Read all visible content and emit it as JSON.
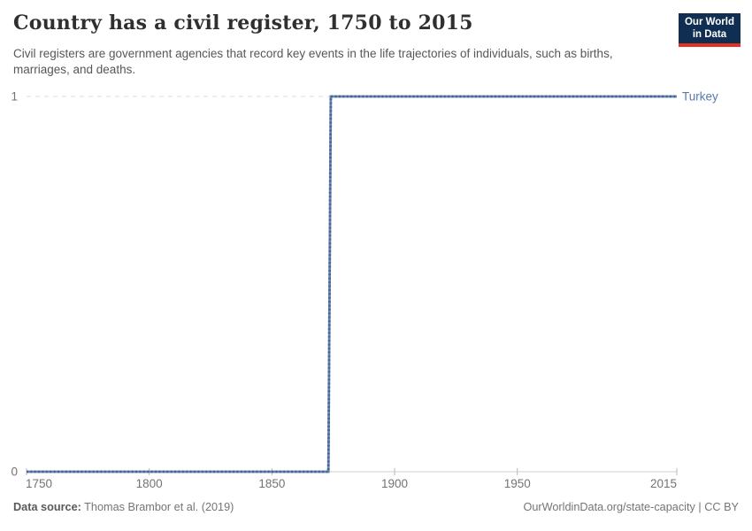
{
  "header": {
    "title": "Country has a civil register, 1750 to 2015",
    "subtitle": "Civil registers are government agencies that record key events in the life trajectories of individuals, such as births, marriages, and deaths."
  },
  "logo": {
    "line1": "Our World",
    "line2": "in Data",
    "bg_color": "#0f2e51",
    "accent_color": "#e13223"
  },
  "chart_data": {
    "type": "line",
    "step": true,
    "title": "Country has a civil register, 1750 to 2015",
    "xlabel": "",
    "ylabel": "",
    "xlim": [
      1750,
      2015
    ],
    "ylim": [
      0,
      1
    ],
    "x_ticks": [
      1750,
      1800,
      1850,
      1900,
      1950,
      2015
    ],
    "y_ticks": [
      0,
      1
    ],
    "grid": "horizontal-dashed-at-1",
    "legend_position": "end-of-line",
    "series": [
      {
        "name": "Turkey",
        "color": "#5779ab",
        "line_color": "#6584af",
        "marker_color": "#44618e",
        "points": [
          {
            "x": 1750,
            "y": 0
          },
          {
            "x": 1873,
            "y": 0
          },
          {
            "x": 1874,
            "y": 1
          },
          {
            "x": 2015,
            "y": 1
          }
        ]
      }
    ]
  },
  "footer": {
    "source_label": "Data source:",
    "source_value": "Thomas Brambor et al. (2019)",
    "url": "OurWorldinData.org/state-capacity",
    "separator": "|",
    "license": "CC BY"
  }
}
